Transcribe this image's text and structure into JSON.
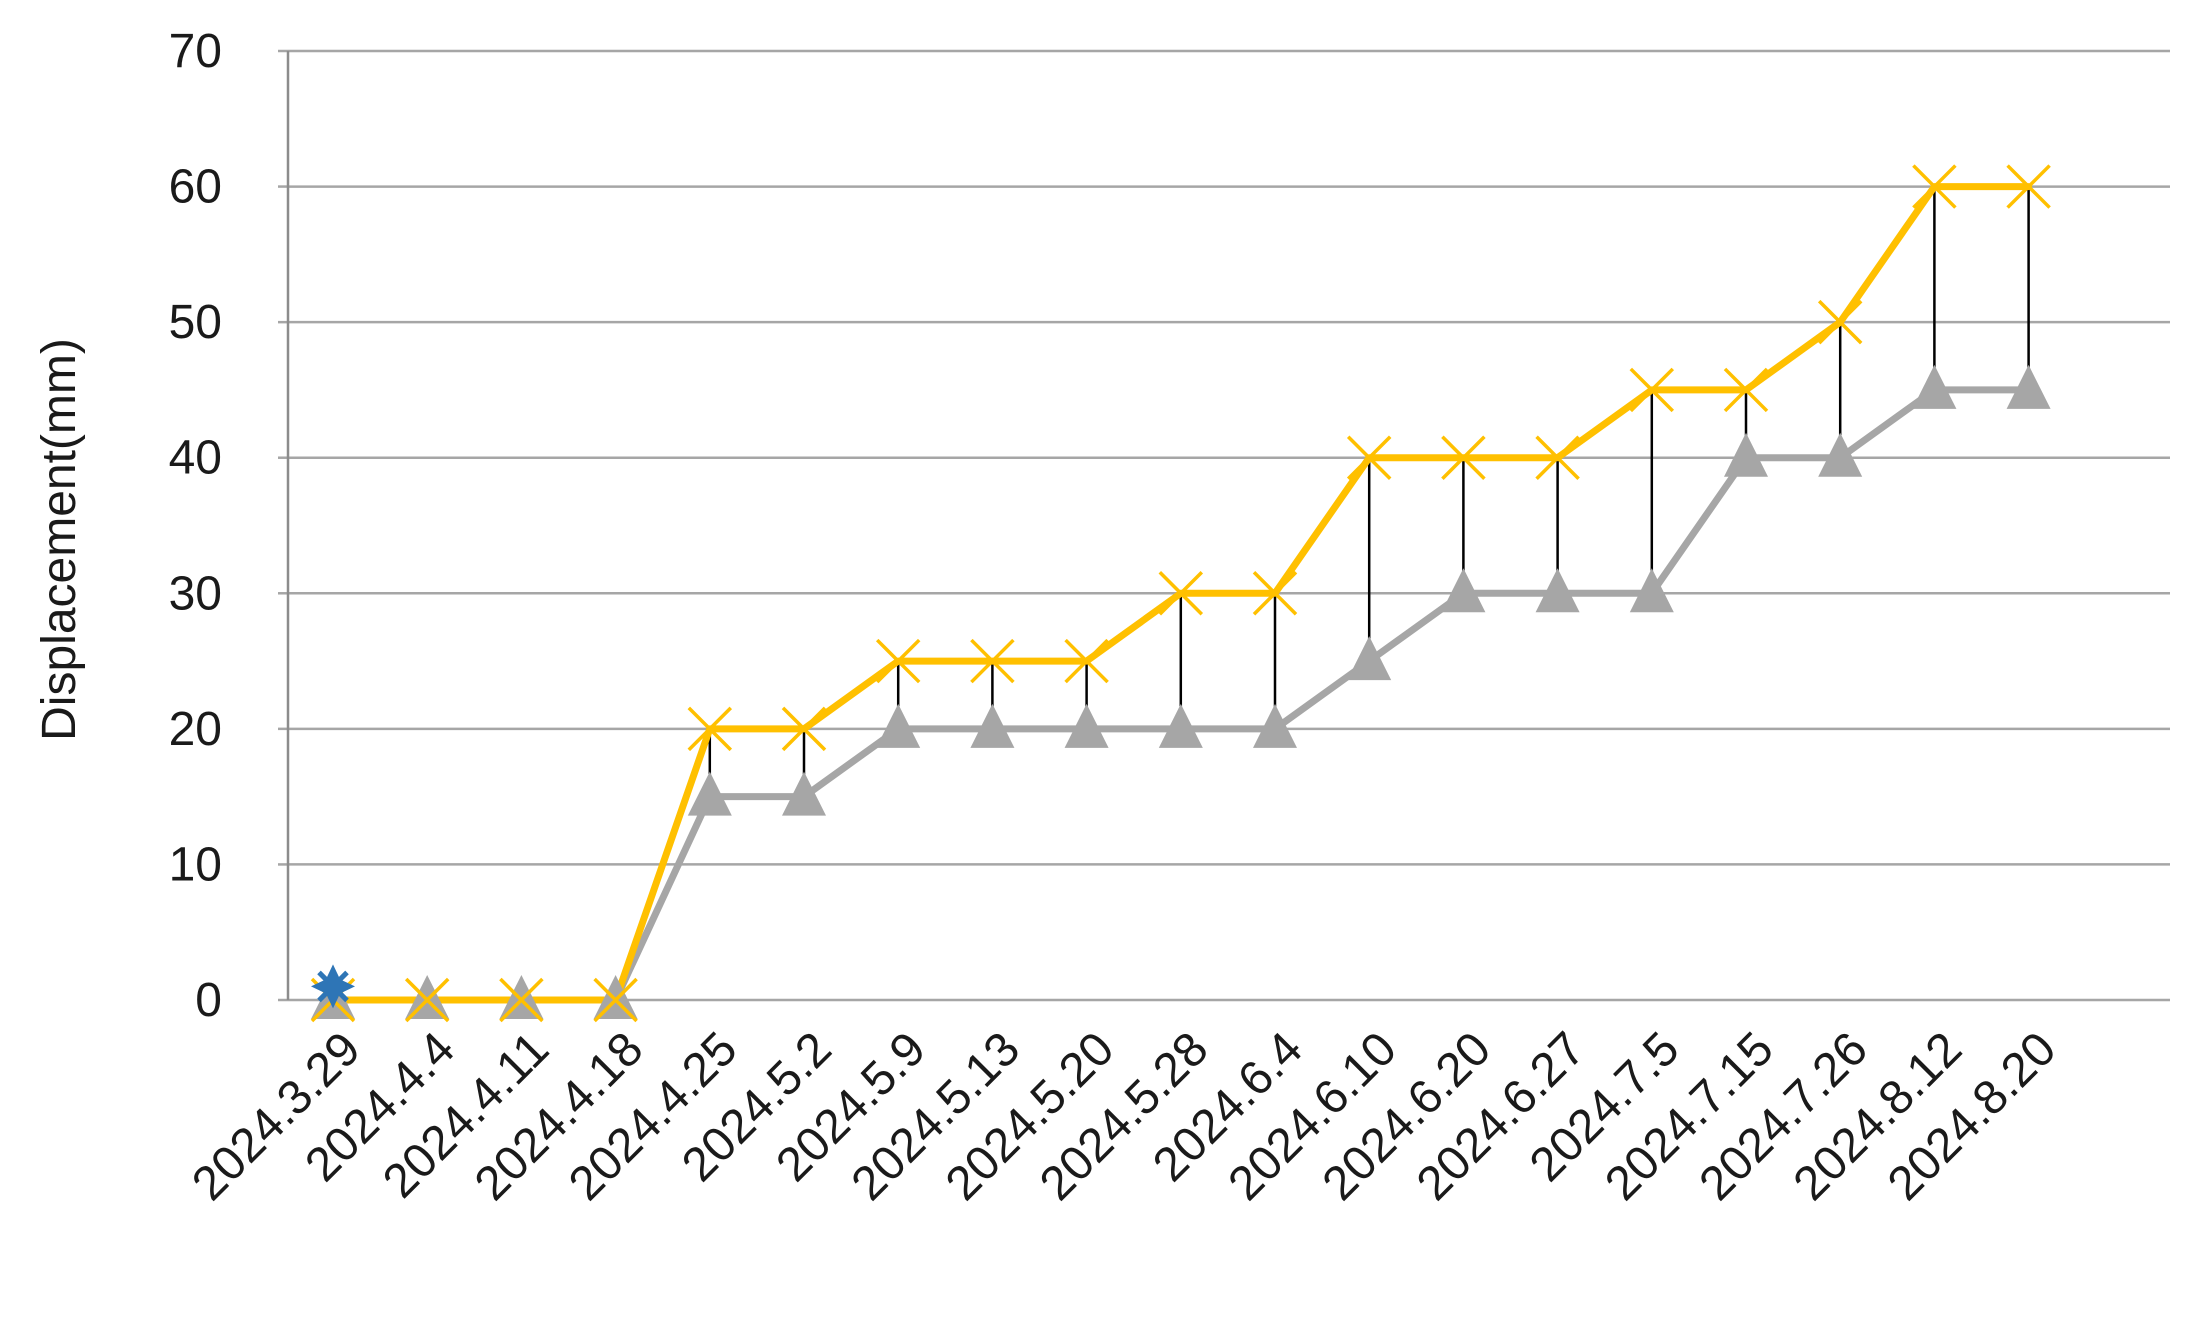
{
  "chart_data": {
    "type": "line",
    "title": "",
    "xlabel": "",
    "ylabel": "Displacement(mm)",
    "ylim": [
      0,
      70
    ],
    "yticks": [
      0,
      10,
      20,
      30,
      40,
      50,
      60,
      70
    ],
    "grid": true,
    "legend": "none",
    "categories": [
      "2024.3.29",
      "2024.4.4",
      "2024.4.11",
      "2024.4.18",
      "2024.4.25",
      "2024.5.2",
      "2024.5.9",
      "2024.5.13",
      "2024.5.20",
      "2024.5.28",
      "2024.6.4",
      "2024.6.10",
      "2024.6.20",
      "2024.6.27",
      "2024.7.5",
      "2024.7.15",
      "2024.7.26",
      "2024.8.12",
      "2024.8.20"
    ],
    "series": [
      {
        "marker": "triangle",
        "color": "#a6a6a6",
        "values": [
          0,
          0,
          0,
          0,
          15,
          15,
          20,
          20,
          20,
          20,
          20,
          25,
          30,
          30,
          30,
          40,
          40,
          45,
          45
        ]
      },
      {
        "marker": "x",
        "color": "#ffc000",
        "values": [
          0,
          0,
          0,
          0,
          20,
          20,
          25,
          25,
          25,
          30,
          30,
          40,
          40,
          40,
          45,
          45,
          50,
          60,
          60
        ]
      }
    ],
    "highlight_point": {
      "category": "2024.3.29",
      "value": 1,
      "marker": "star",
      "color": "#2e75b6"
    },
    "range_lines": {
      "color": "#000000"
    }
  }
}
